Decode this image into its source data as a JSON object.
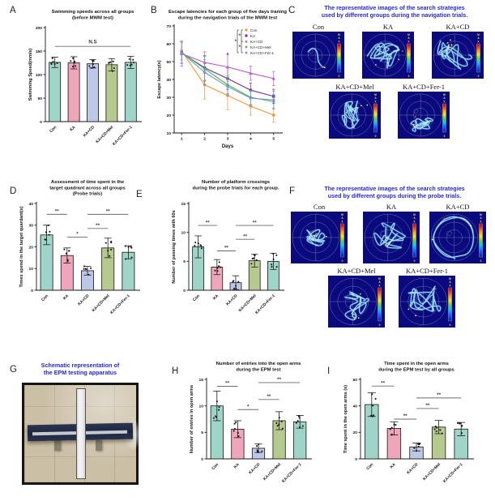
{
  "colors": {
    "accent_blue_title": "#2727de",
    "maze_bg": "#0a0a7e",
    "bar_outline": "#161616",
    "sig_line": "#6a6a6a"
  },
  "groups": [
    "Con",
    "KA",
    "KA+CD",
    "KA+CD+Mel",
    "KA+CD+Fer-1"
  ],
  "bar_palette": [
    "#9ed5c8",
    "#f0a6ba",
    "#bdc7e6",
    "#b6c98f",
    "#9ed5c8"
  ],
  "panels": {
    "A": {
      "label": "A"
    },
    "B": {
      "label": "B"
    },
    "C": {
      "label": "C",
      "title": [
        "The representative images of the search strategies",
        "used by different groups during the navigation trials."
      ],
      "colorbar": {
        "max": "MAX",
        "min": "0"
      },
      "mazes": [
        {
          "label": "Con",
          "strategy": "direct-to-platform"
        },
        {
          "label": "KA",
          "strategy": "random-search"
        },
        {
          "label": "KA+CD",
          "strategy": "random-search-wide"
        },
        {
          "label": "KA+CD+Mel",
          "strategy": "random-search"
        },
        {
          "label": "KA+CD+Fer-1",
          "strategy": "random-search-bottom"
        }
      ]
    },
    "D": {
      "label": "D"
    },
    "E": {
      "label": "E"
    },
    "F": {
      "label": "F",
      "title": [
        "The representative images of the search strategies",
        "used by different groups during the probe trials."
      ],
      "colorbar": {
        "max": "MAX",
        "min": "0"
      },
      "mazes": [
        {
          "label": "Con",
          "strategy": "focused-center"
        },
        {
          "label": "KA",
          "strategy": "random-search"
        },
        {
          "label": "KA+CD",
          "strategy": "edge-circling"
        },
        {
          "label": "KA+CD+Mel",
          "strategy": "random-search"
        },
        {
          "label": "KA+CD+Fer-1",
          "strategy": "random-search"
        }
      ]
    },
    "G": {
      "label": "G",
      "title": [
        "Schematic representation of",
        "the EPM testing apparatus"
      ]
    },
    "H": {
      "label": "H"
    },
    "I": {
      "label": "I"
    }
  },
  "chart_data": [
    {
      "id": "A",
      "type": "bar",
      "title": [
        "Swimming speeds across all groups",
        "(before MWM test)"
      ],
      "ylabel": "Swimming Speed(mm/s)",
      "ylim": [
        0,
        200
      ],
      "yticks": [
        0,
        50,
        100,
        150,
        200
      ],
      "categories": [
        "Con",
        "KA",
        "KA+CD",
        "KA+CD+Mel",
        "KA+CD+Fer-1"
      ],
      "values": [
        126,
        125,
        123,
        121,
        126
      ],
      "errors": [
        11,
        13,
        9,
        13,
        13
      ],
      "ns": {
        "label": "N.S",
        "y": 160
      }
    },
    {
      "id": "B",
      "type": "line",
      "title": [
        "Escape latencies for each group of five days traning",
        "during the navigation trials of the MWM test"
      ],
      "xlabel": "Days",
      "ylabel": "Escape latency(s)",
      "ylim": [
        10,
        70
      ],
      "yticks": [
        10,
        20,
        30,
        40,
        50,
        60,
        70
      ],
      "x": [
        1,
        2,
        3,
        4,
        5
      ],
      "series": [
        {
          "name": "Con",
          "color": "#f6923b",
          "marker": "circle",
          "values": [
            56,
            37,
            31,
            25,
            20
          ],
          "errors": [
            5,
            8,
            8,
            5,
            4
          ]
        },
        {
          "name": "KA",
          "color": "#7030a0",
          "marker": "square",
          "values": [
            55,
            46.5,
            40.5,
            34,
            30.5
          ],
          "errors": [
            6,
            7,
            6,
            4,
            4
          ]
        },
        {
          "name": "KA+CD",
          "color": "#b85ad0",
          "marker": "triangle",
          "values": [
            54.5,
            49.5,
            47,
            43.5,
            40.5
          ],
          "errors": [
            7,
            6,
            7,
            4,
            4
          ]
        },
        {
          "name": "KA+CD+Mel",
          "color": "#3ec43e",
          "marker": "diamond",
          "values": [
            55,
            46,
            37,
            30,
            27.5
          ],
          "errors": [
            6,
            7,
            5,
            4,
            4
          ]
        },
        {
          "name": "KA+CD+Fer-1",
          "color": "#8089dd",
          "marker": "diamond",
          "values": [
            55,
            44,
            36,
            29.5,
            28.5
          ],
          "errors": [
            6,
            7,
            5,
            4,
            5
          ]
        }
      ],
      "point_annotation": {
        "x": 3,
        "y": 53,
        "label": "*"
      },
      "legend_brackets": [
        {
          "from": 0,
          "to": 2,
          "label": "*"
        },
        {
          "from": 2,
          "to": 4,
          "label": "*"
        },
        {
          "from": 0,
          "to": 4,
          "label": "*"
        }
      ],
      "legend_position": "top-right"
    },
    {
      "id": "D",
      "type": "bar",
      "title": [
        "Assessment of time spent in the",
        "target quadrant across all groups",
        "(Probe trials)"
      ],
      "ylabel": "Times spend in the target quardant(s)",
      "ylim": [
        0,
        40
      ],
      "yticks": [
        0,
        10,
        20,
        30,
        40
      ],
      "categories": [
        "Con",
        "KA",
        "KA+CD",
        "KA+CD+Mel",
        "KA+CD+Fer-1"
      ],
      "values": [
        25.5,
        16,
        9,
        19.5,
        17.5
      ],
      "errors": [
        4.5,
        3.5,
        2,
        4.5,
        3
      ],
      "significance": [
        {
          "a": 0,
          "b": 1,
          "y": 35,
          "label": "**"
        },
        {
          "a": 1,
          "b": 2,
          "y": 24.5,
          "label": "*"
        },
        {
          "a": 2,
          "b": 3,
          "y": 28.5,
          "label": "**"
        },
        {
          "a": 2,
          "b": 4,
          "y": 35,
          "label": "**"
        }
      ]
    },
    {
      "id": "E",
      "type": "bar",
      "title": [
        "Number of platform crossings",
        "during the probe trials for each group."
      ],
      "ylabel": "Number of passing times with 60s",
      "ylim": [
        0,
        15
      ],
      "yticks": [
        0,
        5,
        10,
        15
      ],
      "categories": [
        "Con",
        "KA",
        "KA+CD",
        "KA+CD+Mel",
        "KA+CD+Fer-1"
      ],
      "values": [
        7.5,
        4,
        1.3,
        5.1,
        5
      ],
      "errors": [
        1.9,
        1.3,
        1.2,
        1.1,
        1.4
      ],
      "significance": [
        {
          "a": 0,
          "b": 1,
          "y": 11.2,
          "label": "**"
        },
        {
          "a": 1,
          "b": 2,
          "y": 6.8,
          "label": "**"
        },
        {
          "a": 2,
          "b": 3,
          "y": 8.8,
          "label": "**"
        },
        {
          "a": 2,
          "b": 4,
          "y": 11.2,
          "label": "**"
        }
      ]
    },
    {
      "id": "H",
      "type": "bar",
      "title": [
        "Number of entries into the open arms",
        "during the EPM test"
      ],
      "ylabel": "Number of entries in open arms",
      "ylim": [
        0,
        15
      ],
      "yticks": [
        0,
        5,
        10,
        15
      ],
      "categories": [
        "Con",
        "KA",
        "KA+CD",
        "KA+CD+Mel",
        "KA+CD+Fer-1"
      ],
      "values": [
        10,
        5.6,
        2,
        7.2,
        7
      ],
      "errors": [
        2.8,
        1.6,
        0.8,
        1.7,
        1.2
      ],
      "significance": [
        {
          "a": 0,
          "b": 1,
          "y": 13.7,
          "label": "**"
        },
        {
          "a": 1,
          "b": 2,
          "y": 9.3,
          "label": "*"
        },
        {
          "a": 2,
          "b": 3,
          "y": 11.2,
          "label": "**"
        },
        {
          "a": 2,
          "b": 4,
          "y": 14.4,
          "label": "**"
        }
      ]
    },
    {
      "id": "I",
      "type": "bar",
      "title": [
        "Time spent in the open arms",
        "during the EPM test by all groups"
      ],
      "ylabel": "Time spent in the open arms (s)",
      "ylim": [
        0,
        60
      ],
      "yticks": [
        0,
        20,
        40,
        60
      ],
      "categories": [
        "Con",
        "KA",
        "KA+CD",
        "KA+CD+Mel",
        "KA+CD+Fer-1"
      ],
      "values": [
        41,
        23,
        9,
        24,
        22.5
      ],
      "errors": [
        9,
        5,
        3,
        5,
        5
      ],
      "significance": [
        {
          "a": 0,
          "b": 1,
          "y": 55,
          "label": "**"
        },
        {
          "a": 1,
          "b": 2,
          "y": 30,
          "label": "**"
        },
        {
          "a": 2,
          "b": 3,
          "y": 38,
          "label": "**"
        },
        {
          "a": 2,
          "b": 4,
          "y": 46,
          "label": "**"
        }
      ]
    }
  ]
}
